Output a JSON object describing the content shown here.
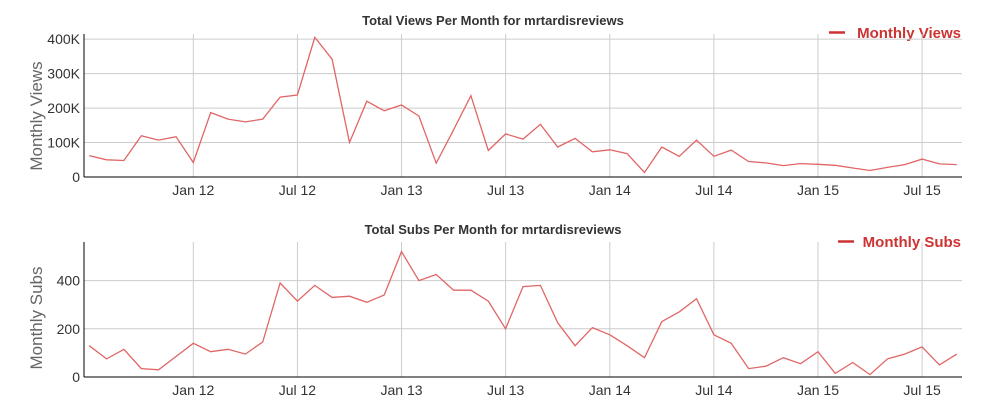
{
  "colors": {
    "series": "#e06666",
    "legend": "#cc3333"
  },
  "chart_data": [
    {
      "type": "line",
      "title": "Total Views Per Month for mrtardisreviews",
      "ylabel": "Monthly Views",
      "xlabel": "",
      "legend": "Monthly Views",
      "legend_position": "top-right",
      "x_ticks": [
        "Jan 12",
        "Jul 12",
        "Jan 13",
        "Jul 13",
        "Jan 14",
        "Jul 14",
        "Jan 15",
        "Jul 15"
      ],
      "y_ticks": [
        0,
        100000,
        200000,
        300000,
        400000
      ],
      "y_tick_labels": [
        "0",
        "100K",
        "200K",
        "300K",
        "400K"
      ],
      "ylim": [
        0,
        415000
      ],
      "x_index_range": [
        -3.3,
        47.3
      ],
      "values": [
        62000,
        50000,
        48000,
        120000,
        107000,
        117000,
        42000,
        187000,
        168000,
        160000,
        168000,
        232000,
        238000,
        405000,
        342000,
        100000,
        220000,
        192000,
        209000,
        177000,
        40000,
        137000,
        236000,
        77000,
        125000,
        110000,
        153000,
        87000,
        112000,
        73000,
        79000,
        68000,
        13000,
        87000,
        60000,
        107000,
        60000,
        78000,
        45000,
        41000,
        33000,
        39000,
        37000,
        34000,
        26000,
        19000,
        28000,
        36000,
        52000,
        38000,
        36000
      ]
    },
    {
      "type": "line",
      "title": "Total Subs Per Month for mrtardisreviews",
      "ylabel": "Monthly Subs",
      "xlabel": "",
      "legend": "Monthly Subs",
      "legend_position": "top-right",
      "x_ticks": [
        "Jan 12",
        "Jul 12",
        "Jan 13",
        "Jul 13",
        "Jan 14",
        "Jul 14",
        "Jan 15",
        "Jul 15"
      ],
      "y_ticks": [
        0,
        200,
        400
      ],
      "y_tick_labels": [
        "0",
        "200",
        "400"
      ],
      "ylim": [
        0,
        560
      ],
      "x_index_range": [
        -3.3,
        47.3
      ],
      "values": [
        130,
        75,
        115,
        35,
        30,
        85,
        140,
        105,
        115,
        95,
        145,
        390,
        315,
        380,
        330,
        335,
        310,
        340,
        520,
        400,
        425,
        360,
        360,
        315,
        200,
        375,
        380,
        225,
        130,
        205,
        175,
        130,
        80,
        230,
        270,
        325,
        175,
        140,
        35,
        45,
        80,
        55,
        105,
        15,
        60,
        10,
        75,
        95,
        125,
        50,
        95
      ]
    }
  ]
}
